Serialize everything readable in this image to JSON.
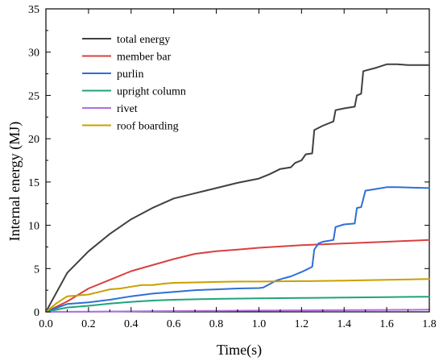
{
  "chart_data": {
    "type": "line",
    "xlabel": "Time(s)",
    "ylabel": "Internal energy (MJ)",
    "xlim": [
      0.0,
      1.8
    ],
    "ylim": [
      0,
      35
    ],
    "xticks": [
      "0.0",
      "0.2",
      "0.4",
      "0.6",
      "0.8",
      "1.0",
      "1.2",
      "1.4",
      "1.6",
      "1.8"
    ],
    "yticks": [
      "0",
      "5",
      "10",
      "15",
      "20",
      "25",
      "30",
      "35"
    ],
    "grid": false,
    "legend": "top-left",
    "series": [
      {
        "name": "total energy",
        "color": "#404040",
        "points": [
          [
            0,
            0
          ],
          [
            0.1,
            4.5
          ],
          [
            0.2,
            7
          ],
          [
            0.3,
            9
          ],
          [
            0.4,
            10.7
          ],
          [
            0.5,
            12
          ],
          [
            0.6,
            13.1
          ],
          [
            0.7,
            13.7
          ],
          [
            0.8,
            14.3
          ],
          [
            0.9,
            14.9
          ],
          [
            1.0,
            15.4
          ],
          [
            1.05,
            15.9
          ],
          [
            1.1,
            16.5
          ],
          [
            1.15,
            16.7
          ],
          [
            1.17,
            17.2
          ],
          [
            1.2,
            17.5
          ],
          [
            1.22,
            18.2
          ],
          [
            1.25,
            18.3
          ],
          [
            1.26,
            21
          ],
          [
            1.3,
            21.5
          ],
          [
            1.35,
            22
          ],
          [
            1.36,
            23.3
          ],
          [
            1.4,
            23.5
          ],
          [
            1.45,
            23.7
          ],
          [
            1.46,
            25
          ],
          [
            1.48,
            25.2
          ],
          [
            1.49,
            27.8
          ],
          [
            1.55,
            28.2
          ],
          [
            1.6,
            28.6
          ],
          [
            1.65,
            28.6
          ],
          [
            1.7,
            28.5
          ],
          [
            1.8,
            28.5
          ]
        ]
      },
      {
        "name": "member bar",
        "color": "#d94040",
        "points": [
          [
            0,
            0
          ],
          [
            0.1,
            1.2
          ],
          [
            0.2,
            2.7
          ],
          [
            0.3,
            3.7
          ],
          [
            0.4,
            4.7
          ],
          [
            0.5,
            5.4
          ],
          [
            0.6,
            6.1
          ],
          [
            0.7,
            6.7
          ],
          [
            0.8,
            7.0
          ],
          [
            0.9,
            7.2
          ],
          [
            1.0,
            7.4
          ],
          [
            1.2,
            7.7
          ],
          [
            1.4,
            7.9
          ],
          [
            1.6,
            8.1
          ],
          [
            1.8,
            8.3
          ]
        ]
      },
      {
        "name": "purlin",
        "color": "#2e6fd6",
        "points": [
          [
            0,
            0
          ],
          [
            0.1,
            0.9
          ],
          [
            0.2,
            1.1
          ],
          [
            0.3,
            1.4
          ],
          [
            0.4,
            1.8
          ],
          [
            0.5,
            2.1
          ],
          [
            0.6,
            2.3
          ],
          [
            0.7,
            2.5
          ],
          [
            0.8,
            2.6
          ],
          [
            0.9,
            2.7
          ],
          [
            1.0,
            2.75
          ],
          [
            1.02,
            2.8
          ],
          [
            1.05,
            3.2
          ],
          [
            1.08,
            3.6
          ],
          [
            1.12,
            3.9
          ],
          [
            1.15,
            4.1
          ],
          [
            1.2,
            4.6
          ],
          [
            1.25,
            5.2
          ],
          [
            1.26,
            7.2
          ],
          [
            1.28,
            7.9
          ],
          [
            1.3,
            8.1
          ],
          [
            1.35,
            8.3
          ],
          [
            1.36,
            9.8
          ],
          [
            1.4,
            10.1
          ],
          [
            1.45,
            10.2
          ],
          [
            1.46,
            12
          ],
          [
            1.48,
            12.1
          ],
          [
            1.5,
            14.0
          ],
          [
            1.55,
            14.2
          ],
          [
            1.6,
            14.4
          ],
          [
            1.65,
            14.4
          ],
          [
            1.8,
            14.3
          ]
        ]
      },
      {
        "name": "upright column",
        "color": "#1fa37a",
        "points": [
          [
            0,
            0
          ],
          [
            0.1,
            0.5
          ],
          [
            0.2,
            0.7
          ],
          [
            0.3,
            0.95
          ],
          [
            0.4,
            1.15
          ],
          [
            0.5,
            1.3
          ],
          [
            0.6,
            1.4
          ],
          [
            0.8,
            1.5
          ],
          [
            1.0,
            1.55
          ],
          [
            1.2,
            1.6
          ],
          [
            1.4,
            1.65
          ],
          [
            1.6,
            1.7
          ],
          [
            1.8,
            1.75
          ]
        ]
      },
      {
        "name": "rivet",
        "color": "#b070e0",
        "points": [
          [
            0,
            0
          ],
          [
            0.2,
            0.03
          ],
          [
            0.4,
            0.06
          ],
          [
            0.6,
            0.09
          ],
          [
            0.8,
            0.12
          ],
          [
            1.0,
            0.15
          ],
          [
            1.2,
            0.18
          ],
          [
            1.4,
            0.2
          ],
          [
            1.6,
            0.22
          ],
          [
            1.8,
            0.25
          ]
        ]
      },
      {
        "name": "roof boarding",
        "color": "#c9a000",
        "points": [
          [
            0,
            0
          ],
          [
            0.05,
            1.0
          ],
          [
            0.1,
            1.8
          ],
          [
            0.15,
            1.9
          ],
          [
            0.2,
            2.0
          ],
          [
            0.25,
            2.3
          ],
          [
            0.3,
            2.6
          ],
          [
            0.35,
            2.7
          ],
          [
            0.4,
            2.9
          ],
          [
            0.45,
            3.1
          ],
          [
            0.5,
            3.1
          ],
          [
            0.55,
            3.25
          ],
          [
            0.6,
            3.35
          ],
          [
            0.7,
            3.4
          ],
          [
            0.8,
            3.45
          ],
          [
            0.9,
            3.5
          ],
          [
            1.0,
            3.5
          ],
          [
            1.2,
            3.55
          ],
          [
            1.4,
            3.6
          ],
          [
            1.6,
            3.7
          ],
          [
            1.8,
            3.8
          ]
        ]
      }
    ]
  }
}
